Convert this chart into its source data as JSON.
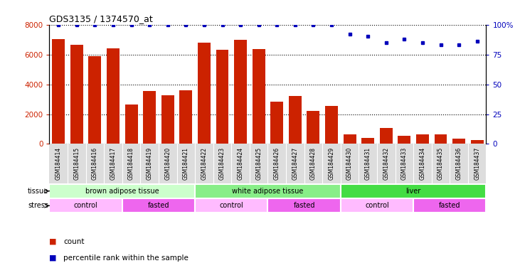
{
  "title": "GDS3135 / 1374570_at",
  "samples": [
    "GSM184414",
    "GSM184415",
    "GSM184416",
    "GSM184417",
    "GSM184418",
    "GSM184419",
    "GSM184420",
    "GSM184421",
    "GSM184422",
    "GSM184423",
    "GSM184424",
    "GSM184425",
    "GSM184426",
    "GSM184427",
    "GSM184428",
    "GSM184429",
    "GSM184430",
    "GSM184431",
    "GSM184432",
    "GSM184433",
    "GSM184434",
    "GSM184435",
    "GSM184436",
    "GSM184437"
  ],
  "counts": [
    7050,
    6650,
    5900,
    6400,
    2650,
    3550,
    3250,
    3600,
    6800,
    6300,
    7000,
    6350,
    2850,
    3200,
    2200,
    2550,
    650,
    400,
    1050,
    550,
    650,
    650,
    350,
    250
  ],
  "percentile_ranks": [
    100,
    100,
    100,
    100,
    100,
    100,
    100,
    100,
    100,
    100,
    100,
    100,
    100,
    100,
    100,
    100,
    92,
    90,
    85,
    88,
    85,
    83,
    83,
    86
  ],
  "bar_color": "#CC2200",
  "dot_color": "#0000BB",
  "ylim_left": [
    0,
    8000
  ],
  "ylim_right": [
    0,
    100
  ],
  "yticks_left": [
    0,
    2000,
    4000,
    6000,
    8000
  ],
  "yticks_right": [
    0,
    25,
    50,
    75,
    100
  ],
  "tissue_groups": [
    {
      "label": "brown adipose tissue",
      "start": 0,
      "end": 8,
      "color": "#CCFFCC"
    },
    {
      "label": "white adipose tissue",
      "start": 8,
      "end": 16,
      "color": "#88EE88"
    },
    {
      "label": "liver",
      "start": 16,
      "end": 24,
      "color": "#44DD44"
    }
  ],
  "stress_groups": [
    {
      "label": "control",
      "start": 0,
      "end": 4,
      "color": "#FFBBFF"
    },
    {
      "label": "fasted",
      "start": 4,
      "end": 8,
      "color": "#EE66EE"
    },
    {
      "label": "control",
      "start": 8,
      "end": 12,
      "color": "#FFBBFF"
    },
    {
      "label": "fasted",
      "start": 12,
      "end": 16,
      "color": "#EE66EE"
    },
    {
      "label": "control",
      "start": 16,
      "end": 20,
      "color": "#FFBBFF"
    },
    {
      "label": "fasted",
      "start": 20,
      "end": 24,
      "color": "#EE66EE"
    }
  ],
  "legend_items": [
    {
      "label": "count",
      "color": "#CC2200"
    },
    {
      "label": "percentile rank within the sample",
      "color": "#0000BB"
    }
  ]
}
